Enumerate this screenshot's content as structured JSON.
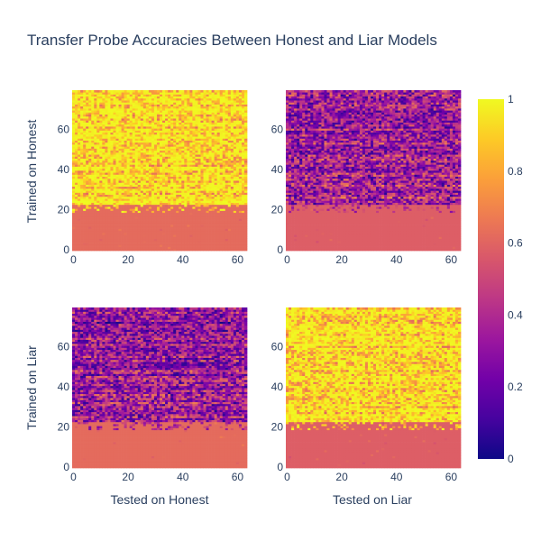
{
  "chart_data": {
    "type": "heatmap",
    "title": "Transfer Probe Accuracies Between Honest and Liar Models",
    "row_labels": [
      "Trained on Honest",
      "Trained on Liar"
    ],
    "col_labels": [
      "Tested on Honest",
      "Tested on Liar"
    ],
    "grid_shape": {
      "rows": 80,
      "cols": 64
    },
    "xlim": [
      0,
      63
    ],
    "ylim": [
      0,
      79
    ],
    "x_ticks": [
      "0",
      "20",
      "40",
      "60"
    ],
    "y_ticks": [
      "0",
      "20",
      "40",
      "60"
    ],
    "colorscale": {
      "name": "Plasma",
      "range": [
        0,
        1
      ],
      "ticks": [
        "0",
        "0.2",
        "0.4",
        "0.6",
        "0.8",
        "1"
      ],
      "stops": [
        "#0d0887",
        "#46039f",
        "#7201a8",
        "#9c179e",
        "#bd3786",
        "#d8576b",
        "#ed7953",
        "#fb9f3a",
        "#fdca26",
        "#f0f921"
      ]
    },
    "panels": [
      {
        "id": "honest-honest",
        "row": 0,
        "col": 0,
        "summary": "rows 0-22 uniform ~0.62; rows 23-79 mostly high accuracy 0.8-1.0",
        "baseline_value": 0.62,
        "baseline_rows": [
          0,
          22
        ],
        "upper_mean": 0.88
      },
      {
        "id": "honest-liar",
        "row": 0,
        "col": 1,
        "summary": "rows 0-22 uniform ~0.58; rows 23-79 low accuracy 0.2-0.6",
        "baseline_value": 0.58,
        "baseline_rows": [
          0,
          22
        ],
        "upper_mean": 0.42
      },
      {
        "id": "liar-honest",
        "row": 1,
        "col": 0,
        "summary": "rows 0-22 uniform ~0.62; rows 23-79 low accuracy 0.1-0.6",
        "baseline_value": 0.62,
        "baseline_rows": [
          0,
          22
        ],
        "upper_mean": 0.4
      },
      {
        "id": "liar-liar",
        "row": 1,
        "col": 1,
        "summary": "rows 0-22 uniform ~0.58; rows 23-79 mostly high accuracy 0.75-1.0",
        "baseline_value": 0.58,
        "baseline_rows": [
          0,
          22
        ],
        "upper_mean": 0.86
      }
    ]
  }
}
